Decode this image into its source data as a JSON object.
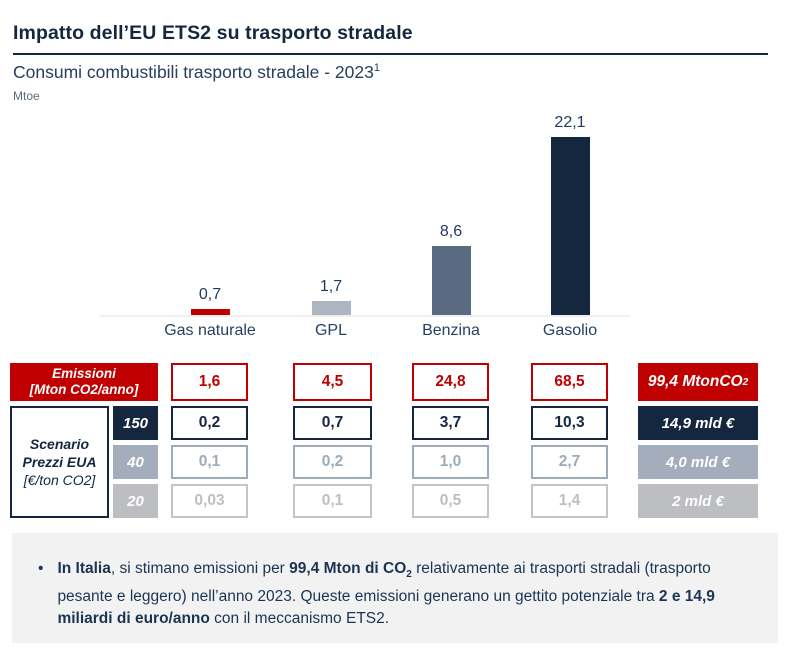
{
  "header": {
    "title": "Impatto dell’EU ETS2 su trasporto stradale",
    "subtitle": "Consumi combustibili trasporto stradale - 2023",
    "subtitle_superscript": "1",
    "unit_label": "Mtoe"
  },
  "colors": {
    "brand_navy": "#14273e",
    "accent_red": "#c00000",
    "slate": "#5a6a80",
    "gray_blue": "#aeb6c1",
    "gray": "#a3adbb",
    "light_gray": "#bcbec1",
    "footer_bg": "#f2f2f3"
  },
  "chart_data": {
    "type": "bar",
    "title": "Consumi combustibili trasporto stradale - 2023",
    "ylabel": "Mtoe",
    "xlabel": "",
    "categories": [
      "Gas naturale",
      "GPL",
      "Benzina",
      "Gasolio"
    ],
    "values": [
      0.7,
      1.7,
      8.6,
      22.1
    ],
    "value_labels": [
      "0,7",
      "1,7",
      "8,6",
      "22,1"
    ],
    "bar_colors": [
      "#c00000",
      "#aeb6c1",
      "#5a6a80",
      "#14273e"
    ],
    "ylim": [
      0,
      26
    ],
    "grid": false,
    "legend": "none",
    "data_labels": true
  },
  "table": {
    "emissions_row": {
      "label_line1": "Emissioni",
      "label_line2": "[Mton CO2/anno]",
      "values": [
        "1,6",
        "4,5",
        "24,8",
        "68,5"
      ],
      "total_text": "99,4 MtonCO",
      "total_sub": "2"
    },
    "scenario_label": {
      "line1": "Scenario",
      "line2": "Prezzi EUA",
      "line3": "[€/ton CO2]"
    },
    "price_rows": [
      {
        "price": "150",
        "values": [
          "0,2",
          "0,7",
          "3,7",
          "10,3"
        ],
        "total": "14,9 mld €"
      },
      {
        "price": "40",
        "values": [
          "0,1",
          "0,2",
          "1,0",
          "2,7"
        ],
        "total": "4,0 mld €"
      },
      {
        "price": "20",
        "values": [
          "0,03",
          "0,1",
          "0,5",
          "1,4"
        ],
        "total": "2 mld €"
      }
    ]
  },
  "footer": {
    "bullet": "•",
    "segments": [
      {
        "text": "In Italia",
        "bold": true
      },
      {
        "text": ", si stimano emissioni per ",
        "bold": false
      },
      {
        "text": "99,4 Mton di CO",
        "bold": true
      },
      {
        "text": "2",
        "bold": true,
        "sub": true
      },
      {
        "text": " relativamente ai trasporti stradali (trasporto pesante e leggero) nell’anno 2023. Queste emissioni generano un gettito potenziale tra ",
        "bold": false
      },
      {
        "text": "2 e 14,9 miliardi di euro/anno",
        "bold": true
      },
      {
        "text": " con il meccanismo ETS2.",
        "bold": false
      }
    ]
  }
}
